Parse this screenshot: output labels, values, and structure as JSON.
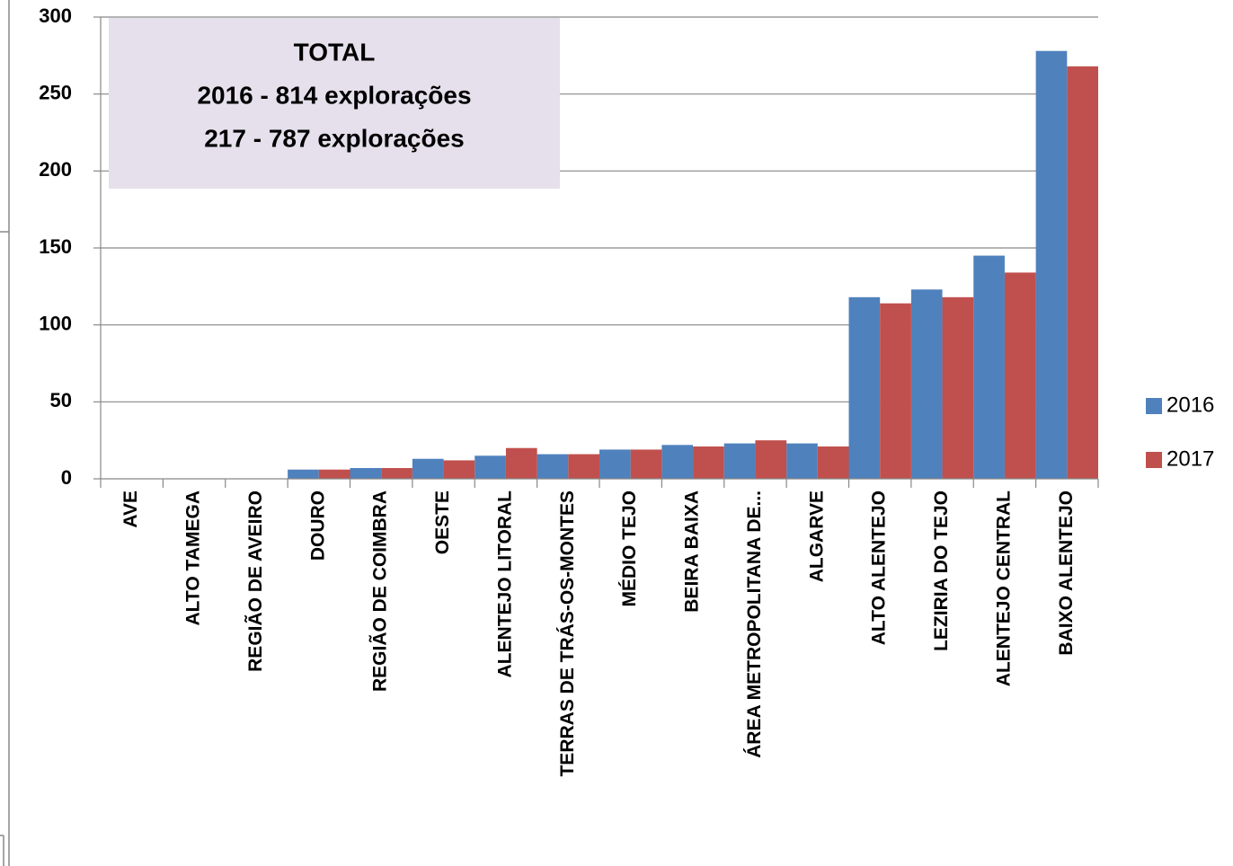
{
  "chart_data": {
    "type": "bar",
    "annotation": [
      "TOTAL",
      "2016 - 814 explorações",
      "217 - 787 explorações"
    ],
    "categories": [
      "AVE",
      "ALTO TAMEGA",
      "REGIÃO DE AVEIRO",
      "DOURO",
      "REGIÃO DE COIMBRA",
      "OESTE",
      "ALENTEJO LITORAL",
      "TERRAS DE TRÁS-OS-MONTES",
      "MÉDIO TEJO",
      "BEIRA BAIXA",
      "ÁREA METROPOLITANA DE...",
      "ALGARVE",
      "ALTO ALENTEJO",
      "LEZIRIA DO TEJO",
      "ALENTEJO CENTRAL",
      "BAIXO ALENTEJO"
    ],
    "series": [
      {
        "name": "2016",
        "color": "#4f81bd",
        "values": [
          0,
          0,
          0,
          6,
          7,
          13,
          15,
          16,
          19,
          22,
          23,
          23,
          118,
          123,
          145,
          278
        ]
      },
      {
        "name": "2017",
        "color": "#c0504d",
        "values": [
          0,
          0,
          0,
          6,
          7,
          12,
          20,
          16,
          19,
          21,
          25,
          21,
          114,
          118,
          134,
          268
        ]
      }
    ],
    "ylim": [
      0,
      300
    ],
    "yticks": [
      0,
      50,
      100,
      150,
      200,
      250,
      300
    ],
    "grid": true,
    "legend": "right"
  }
}
